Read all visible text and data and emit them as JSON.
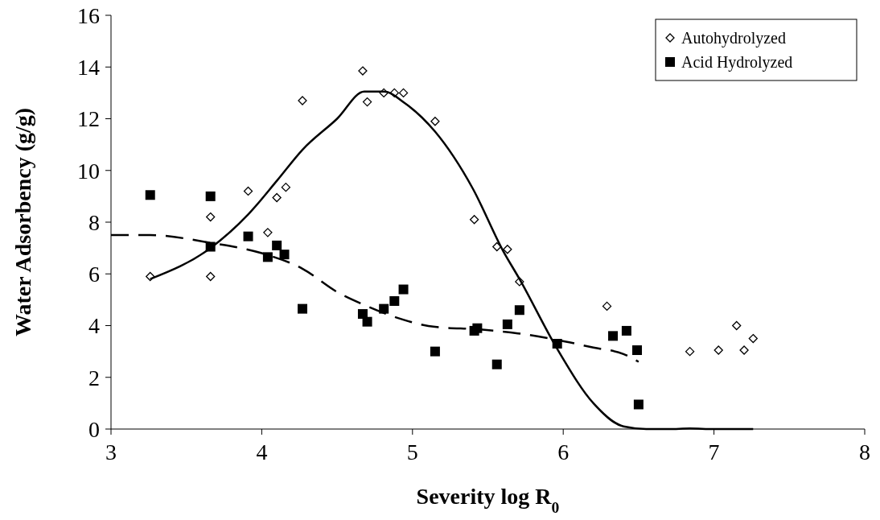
{
  "chart_data": {
    "type": "scatter",
    "xlabel": "Severity log R$_{0}$",
    "ylabel": "Water Adsorbency (g/g)",
    "xlim": [
      3,
      8
    ],
    "xticks": [
      3,
      4,
      5,
      6,
      7,
      8
    ],
    "ylim": [
      0,
      16
    ],
    "yticks": [
      0,
      2,
      4,
      6,
      8,
      10,
      12,
      14,
      16
    ],
    "grid": false,
    "legend": "top right",
    "series": [
      {
        "name": "Autohydrolyzed",
        "marker": "diamond",
        "color": "#000000",
        "x": [
          3.26,
          3.66,
          3.66,
          3.91,
          4.04,
          4.1,
          4.16,
          4.27,
          4.67,
          4.7,
          4.81,
          4.88,
          4.94,
          5.15,
          5.41,
          5.56,
          5.63,
          5.71,
          6.29,
          6.84,
          7.03,
          7.15,
          7.2,
          7.26
        ],
        "values": [
          5.9,
          8.2,
          5.9,
          9.2,
          7.6,
          8.95,
          9.35,
          12.7,
          13.85,
          12.65,
          13.0,
          13.0,
          13.0,
          11.9,
          8.1,
          7.05,
          6.95,
          5.7,
          4.75,
          3.0,
          3.05,
          4.0,
          3.05,
          3.5
        ]
      },
      {
        "name": "Acid Hydrolyzed",
        "marker": "square",
        "color": "#000000",
        "x": [
          3.26,
          3.66,
          3.66,
          3.91,
          4.04,
          4.1,
          4.15,
          4.27,
          4.67,
          4.7,
          4.81,
          4.88,
          4.94,
          5.15,
          5.41,
          5.43,
          5.56,
          5.63,
          5.71,
          5.96,
          6.33,
          6.42,
          6.49,
          6.5
        ],
        "values": [
          9.05,
          9.0,
          7.05,
          7.45,
          6.65,
          7.1,
          6.75,
          4.65,
          4.45,
          4.15,
          4.65,
          4.95,
          5.4,
          3.0,
          3.8,
          3.9,
          2.5,
          4.05,
          4.6,
          3.3,
          3.6,
          3.8,
          3.05,
          0.95
        ]
      },
      {
        "type": "line",
        "marker": "none",
        "line_style": "solid",
        "color": "#000000",
        "x": [
          3.26,
          3.66,
          3.91,
          4.1,
          4.27,
          4.5,
          4.68,
          4.81,
          4.95,
          5.15,
          5.4,
          5.6,
          5.71,
          5.96,
          6.2,
          6.4,
          6.55,
          6.7,
          6.84,
          7.0,
          7.26
        ],
        "values": [
          5.8,
          7.0,
          8.3,
          9.6,
          10.8,
          12.0,
          13.05,
          13.05,
          12.6,
          11.5,
          9.3,
          6.9,
          5.8,
          3.1,
          1.0,
          0.1,
          0,
          0,
          0.02,
          0,
          0
        ]
      },
      {
        "type": "line",
        "marker": "none",
        "line_style": "dashed",
        "color": "#000000",
        "x": [
          3,
          3.26,
          3.66,
          4.0,
          4.27,
          4.5,
          4.7,
          4.9,
          5.15,
          5.45,
          5.7,
          5.96,
          6.2,
          6.4,
          6.5
        ],
        "values": [
          7.5,
          7.5,
          7.2,
          6.8,
          6.2,
          5.3,
          4.75,
          4.3,
          3.95,
          3.85,
          3.7,
          3.45,
          3.15,
          2.9,
          2.6
        ]
      }
    ]
  }
}
